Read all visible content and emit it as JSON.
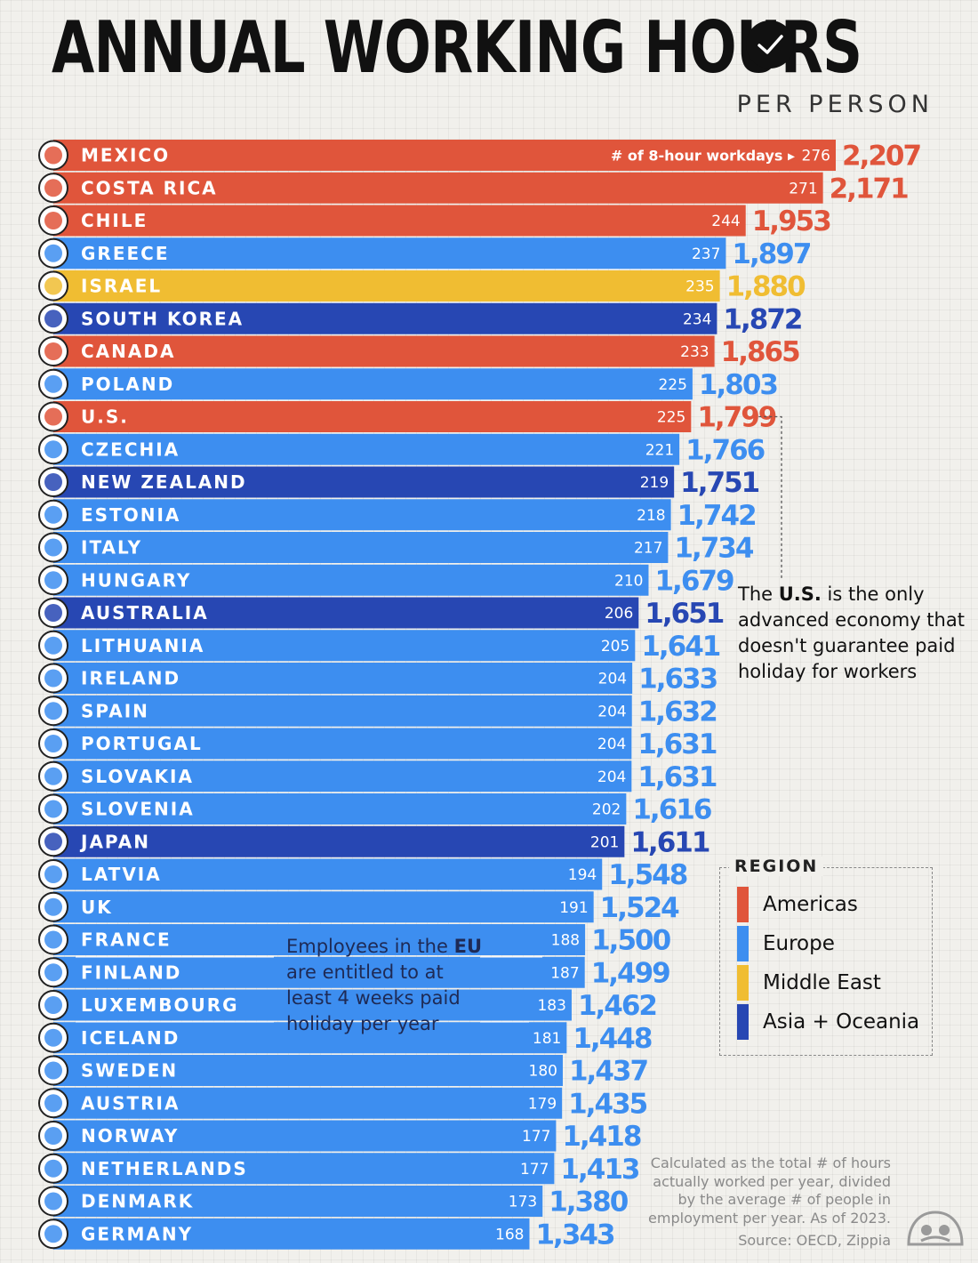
{
  "header": {
    "title": "ANNUAL WORKING HOURS",
    "subtitle": "PER PERSON"
  },
  "chart_data": {
    "type": "bar",
    "orientation": "horizontal",
    "title": "ANNUAL WORKING HOURS",
    "subtitle": "PER PERSON",
    "xlim": [
      0,
      2207
    ],
    "hint_label": "# of 8-hour workdays",
    "rows": [
      {
        "country": "MEXICO",
        "workdays": 276,
        "hours": 2207,
        "hours_label": "2,207",
        "region": "Americas"
      },
      {
        "country": "COSTA RICA",
        "workdays": 271,
        "hours": 2171,
        "hours_label": "2,171",
        "region": "Americas"
      },
      {
        "country": "CHILE",
        "workdays": 244,
        "hours": 1953,
        "hours_label": "1,953",
        "region": "Americas"
      },
      {
        "country": "GREECE",
        "workdays": 237,
        "hours": 1897,
        "hours_label": "1,897",
        "region": "Europe"
      },
      {
        "country": "ISRAEL",
        "workdays": 235,
        "hours": 1880,
        "hours_label": "1,880",
        "region": "Middle East"
      },
      {
        "country": "SOUTH KOREA",
        "workdays": 234,
        "hours": 1872,
        "hours_label": "1,872",
        "region": "Asia + Oceania"
      },
      {
        "country": "CANADA",
        "workdays": 233,
        "hours": 1865,
        "hours_label": "1,865",
        "region": "Americas"
      },
      {
        "country": "POLAND",
        "workdays": 225,
        "hours": 1803,
        "hours_label": "1,803",
        "region": "Europe"
      },
      {
        "country": "U.S.",
        "workdays": 225,
        "hours": 1799,
        "hours_label": "1,799",
        "region": "Americas"
      },
      {
        "country": "CZECHIA",
        "workdays": 221,
        "hours": 1766,
        "hours_label": "1,766",
        "region": "Europe"
      },
      {
        "country": "NEW ZEALAND",
        "workdays": 219,
        "hours": 1751,
        "hours_label": "1,751",
        "region": "Asia + Oceania"
      },
      {
        "country": "ESTONIA",
        "workdays": 218,
        "hours": 1742,
        "hours_label": "1,742",
        "region": "Europe"
      },
      {
        "country": "ITALY",
        "workdays": 217,
        "hours": 1734,
        "hours_label": "1,734",
        "region": "Europe"
      },
      {
        "country": "HUNGARY",
        "workdays": 210,
        "hours": 1679,
        "hours_label": "1,679",
        "region": "Europe"
      },
      {
        "country": "AUSTRALIA",
        "workdays": 206,
        "hours": 1651,
        "hours_label": "1,651",
        "region": "Asia + Oceania"
      },
      {
        "country": "LITHUANIA",
        "workdays": 205,
        "hours": 1641,
        "hours_label": "1,641",
        "region": "Europe"
      },
      {
        "country": "IRELAND",
        "workdays": 204,
        "hours": 1633,
        "hours_label": "1,633",
        "region": "Europe"
      },
      {
        "country": "SPAIN",
        "workdays": 204,
        "hours": 1632,
        "hours_label": "1,632",
        "region": "Europe"
      },
      {
        "country": "PORTUGAL",
        "workdays": 204,
        "hours": 1631,
        "hours_label": "1,631",
        "region": "Europe"
      },
      {
        "country": "SLOVAKIA",
        "workdays": 204,
        "hours": 1631,
        "hours_label": "1,631",
        "region": "Europe"
      },
      {
        "country": "SLOVENIA",
        "workdays": 202,
        "hours": 1616,
        "hours_label": "1,616",
        "region": "Europe"
      },
      {
        "country": "JAPAN",
        "workdays": 201,
        "hours": 1611,
        "hours_label": "1,611",
        "region": "Asia + Oceania"
      },
      {
        "country": "LATVIA",
        "workdays": 194,
        "hours": 1548,
        "hours_label": "1,548",
        "region": "Europe"
      },
      {
        "country": "UK",
        "workdays": 191,
        "hours": 1524,
        "hours_label": "1,524",
        "region": "Europe"
      },
      {
        "country": "FRANCE",
        "workdays": 188,
        "hours": 1500,
        "hours_label": "1,500",
        "region": "Europe"
      },
      {
        "country": "FINLAND",
        "workdays": 187,
        "hours": 1499,
        "hours_label": "1,499",
        "region": "Europe"
      },
      {
        "country": "LUXEMBOURG",
        "workdays": 183,
        "hours": 1462,
        "hours_label": "1,462",
        "region": "Europe"
      },
      {
        "country": "ICELAND",
        "workdays": 181,
        "hours": 1448,
        "hours_label": "1,448",
        "region": "Europe"
      },
      {
        "country": "SWEDEN",
        "workdays": 180,
        "hours": 1437,
        "hours_label": "1,437",
        "region": "Europe"
      },
      {
        "country": "AUSTRIA",
        "workdays": 179,
        "hours": 1435,
        "hours_label": "1,435",
        "region": "Europe"
      },
      {
        "country": "NORWAY",
        "workdays": 177,
        "hours": 1418,
        "hours_label": "1,418",
        "region": "Europe"
      },
      {
        "country": "NETHERLANDS",
        "workdays": 177,
        "hours": 1413,
        "hours_label": "1,413",
        "region": "Europe"
      },
      {
        "country": "DENMARK",
        "workdays": 173,
        "hours": 1380,
        "hours_label": "1,380",
        "region": "Europe"
      },
      {
        "country": "GERMANY",
        "workdays": 168,
        "hours": 1343,
        "hours_label": "1,343",
        "region": "Europe"
      }
    ]
  },
  "regions": [
    {
      "name": "Americas",
      "bar": "#e0553b",
      "text": "#e0553b"
    },
    {
      "name": "Europe",
      "bar": "#3d8ef0",
      "text": "#3d8ef0"
    },
    {
      "name": "Middle East",
      "bar": "#f0bd32",
      "text": "#f0bd32"
    },
    {
      "name": "Asia + Oceania",
      "bar": "#2747b3",
      "text": "#2747b3"
    }
  ],
  "legend": {
    "title": "REGION",
    "items": [
      "Americas",
      "Europe",
      "Middle East",
      "Asia + Oceania"
    ]
  },
  "annotations": {
    "us_pre": "The ",
    "us_bold": "U.S.",
    "us_post": " is the only advanced economy that doesn't guarantee paid holiday for workers",
    "eu_pre": "Employees in the ",
    "eu_bold": "EU",
    "eu_post": " are entitled to at least 4 weeks paid holiday per year"
  },
  "footer": {
    "note": "Calculated as the total # of hours actually worked per year, divided by the average # of people in employment per year. As of 2023.",
    "source": "Source: OECD, Zippia"
  }
}
